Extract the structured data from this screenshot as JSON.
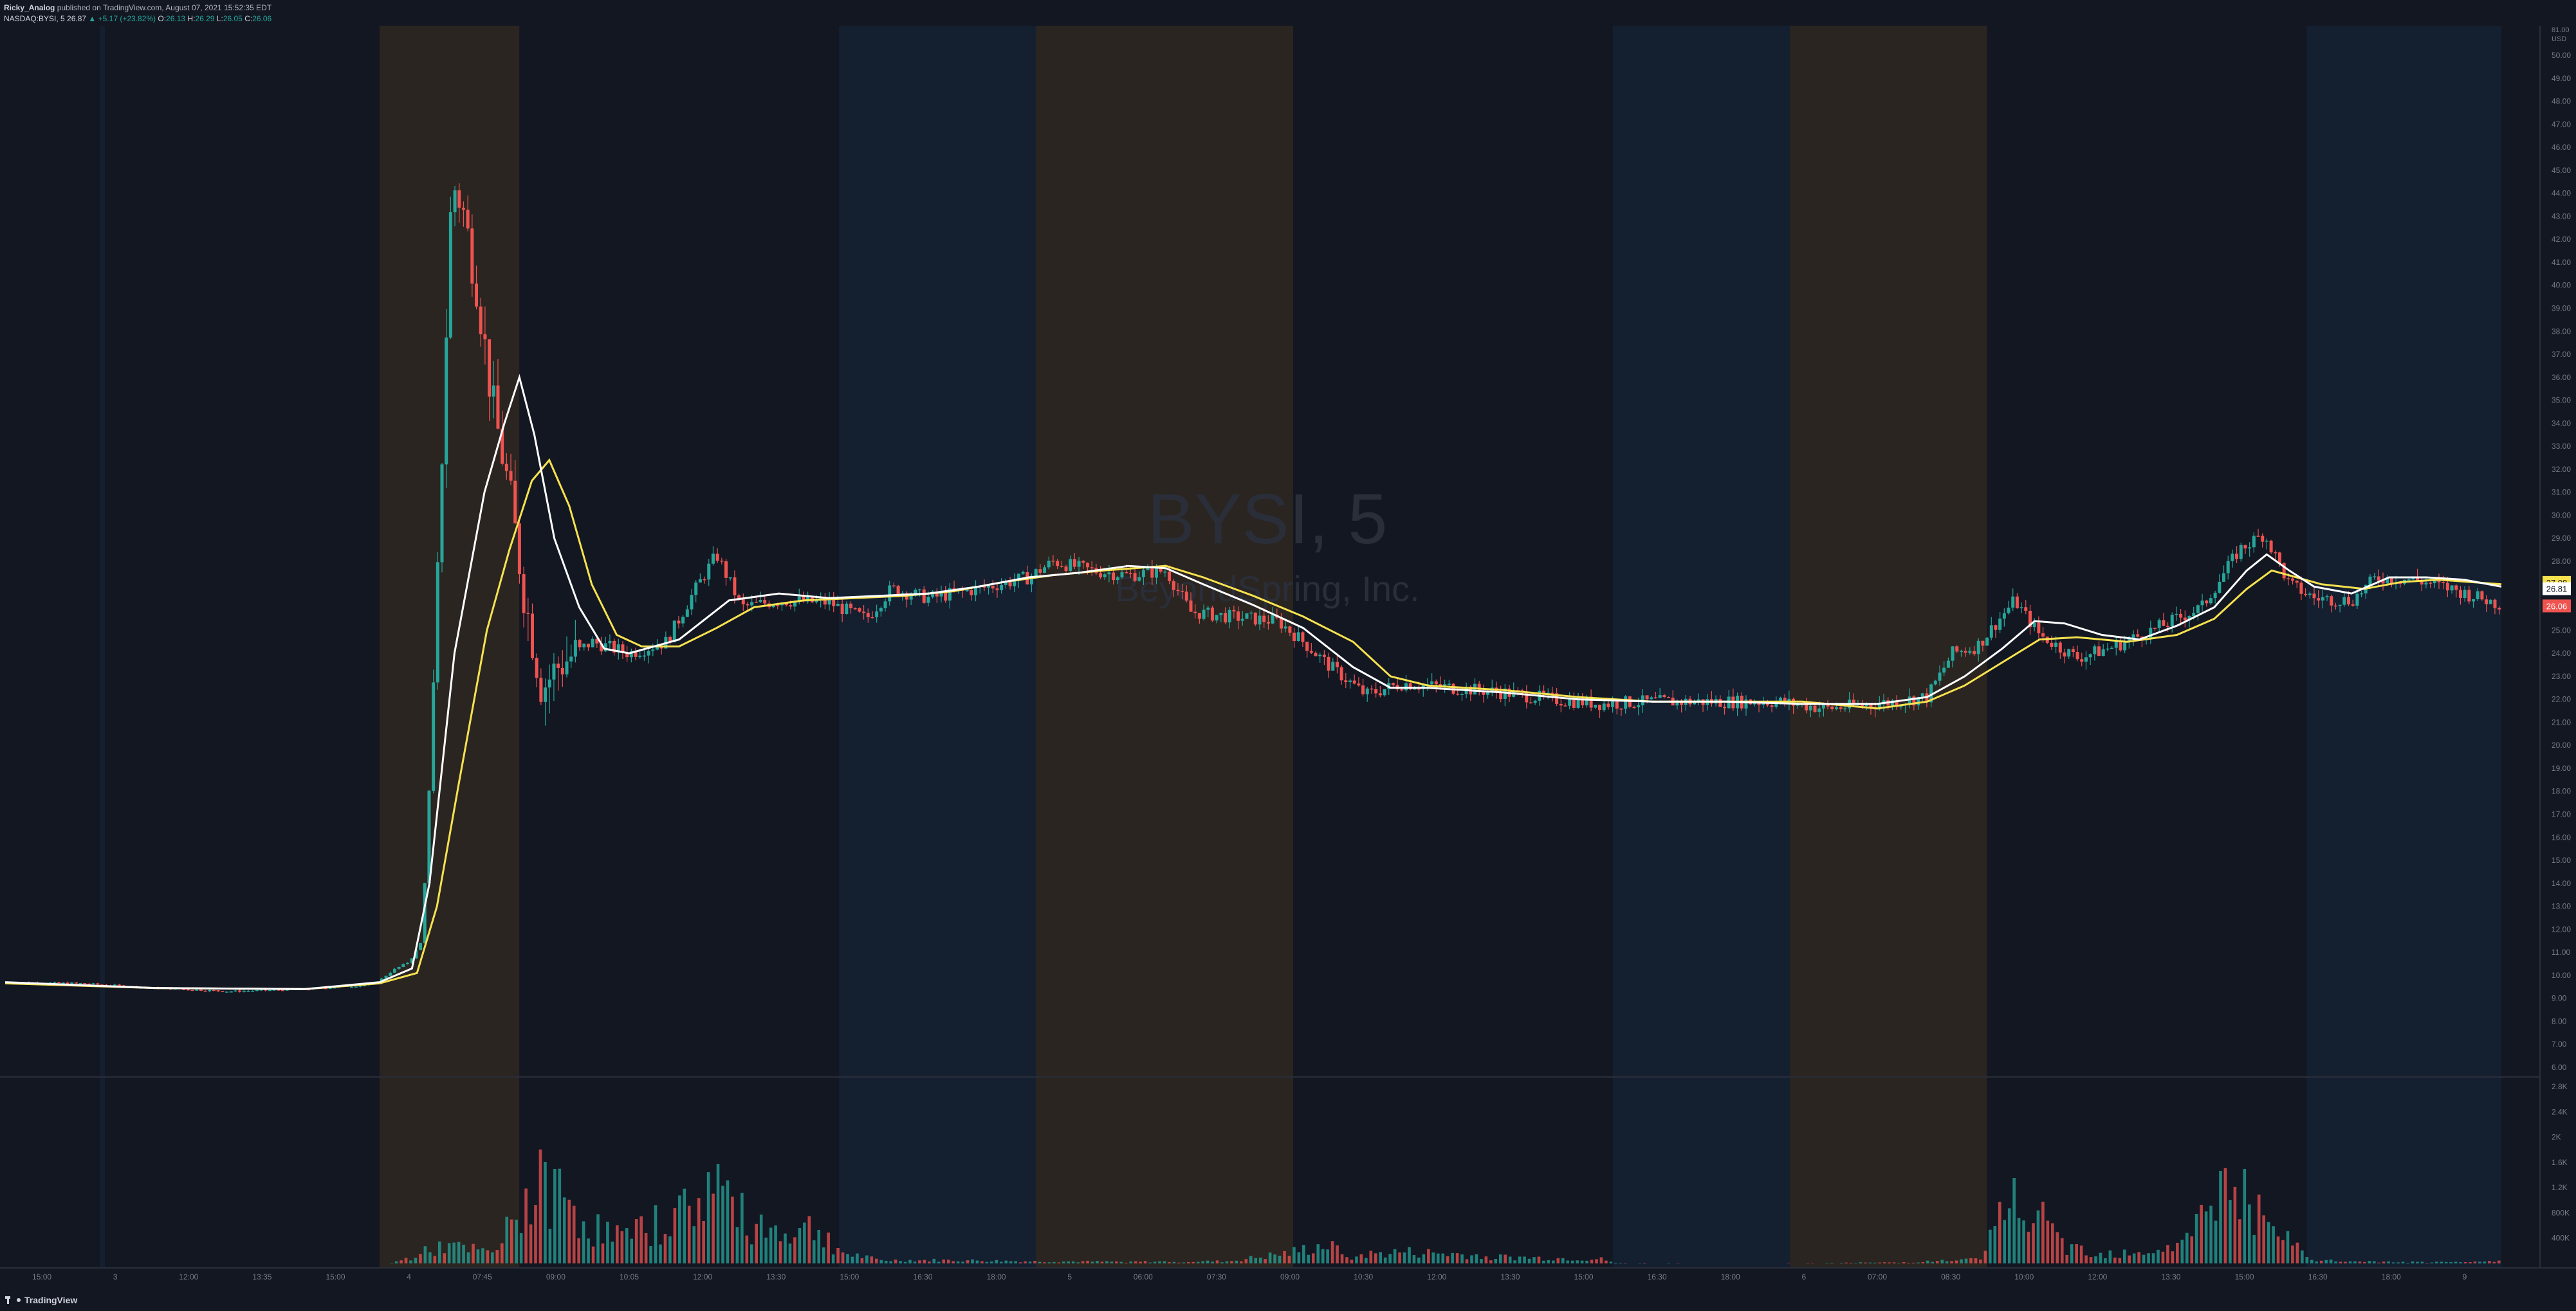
{
  "header": {
    "author": "Ricky_Analog",
    "published": "published on TradingView.com, August 07, 2021 15:52:35 EDT",
    "symbol_line": "NASDAQ:BYSI, 5",
    "last": "26.87",
    "change": "▲ +5.17 (+23.82%)",
    "o_label": "O:",
    "o_value": "26.13",
    "h_label": "H:",
    "h_value": "26.29",
    "l_label": "L:",
    "l_value": "26.05",
    "c_label": "C:",
    "c_value": "26.06"
  },
  "watermark": {
    "symbol": "BYSI, 5",
    "company": "BeyondSpring, Inc."
  },
  "footer": {
    "brand": "TradingView"
  },
  "colors": {
    "background": "#131722",
    "up": "#26a69a",
    "down": "#ef5350",
    "ma_fast": "#ffffff",
    "ma_slow": "#f7e24f",
    "premarket_band": "#2a2521",
    "afterhours_band": "#141f30",
    "overnight_band": "#131722"
  },
  "badges": {
    "ma1": "27.08",
    "ma2": "26.81",
    "last": "26.06",
    "currency_a": "81.00",
    "currency_b": "USD"
  },
  "chart_data": {
    "type": "line",
    "title": "BYSI, 5",
    "subtitle": "BeyondSpring, Inc.",
    "x_ticks": [
      "15:00",
      "3",
      "12:00",
      "13:35",
      "15:00",
      "4",
      "07:45",
      "09:00",
      "10:05",
      "12:00",
      "13:30",
      "15:00",
      "16:30",
      "18:00",
      "5",
      "06:00",
      "07:30",
      "09:00",
      "10:30",
      "12:00",
      "13:30",
      "15:00",
      "16:30",
      "18:00",
      "6",
      "07:00",
      "08:30",
      "10:00",
      "12:00",
      "13:30",
      "15:00",
      "16:30",
      "18:00",
      "9"
    ],
    "y_ticks": [
      6,
      7,
      8,
      9,
      10,
      11,
      12,
      13,
      14,
      15,
      16,
      17,
      18,
      19,
      20,
      21,
      22,
      23,
      24,
      25,
      26,
      27,
      28,
      29,
      30,
      31,
      32,
      33,
      34,
      35,
      36,
      37,
      38,
      39,
      40,
      41,
      42,
      43,
      44,
      45,
      46,
      47,
      48,
      49,
      50
    ],
    "ylim": [
      6,
      50
    ],
    "volume_ticks": [
      "2.8K",
      "2.4K",
      "2K",
      "1.6K",
      "1.2K",
      "800K",
      "400K"
    ],
    "volume_max": 2800,
    "x_range": [
      0,
      100
    ],
    "sessions": [
      {
        "type": "overnight",
        "x": [
          0,
          3.8
        ]
      },
      {
        "type": "afterhours",
        "x": [
          3.8,
          4.0
        ]
      },
      {
        "type": "overnight",
        "x": [
          4.0,
          15.0
        ]
      },
      {
        "type": "premarket",
        "x": [
          15.0,
          20.6
        ]
      },
      {
        "type": "regular",
        "x": [
          20.6,
          33.4
        ]
      },
      {
        "type": "afterhours",
        "x": [
          33.4,
          41.3
        ]
      },
      {
        "type": "premarket",
        "x": [
          41.3,
          51.6
        ]
      },
      {
        "type": "regular",
        "x": [
          51.6,
          64.4
        ]
      },
      {
        "type": "afterhours",
        "x": [
          64.4,
          71.5
        ]
      },
      {
        "type": "premarket",
        "x": [
          71.5,
          79.4
        ]
      },
      {
        "type": "regular",
        "x": [
          79.4,
          92.2
        ]
      },
      {
        "type": "afterhours",
        "x": [
          92.2,
          100
        ]
      }
    ],
    "price_path": [
      [
        0,
        9.7
      ],
      [
        3,
        9.65
      ],
      [
        6,
        9.45
      ],
      [
        9,
        9.3
      ],
      [
        12,
        9.4
      ],
      [
        14.8,
        9.6
      ],
      [
        15.5,
        10.2
      ],
      [
        16.2,
        10.6
      ],
      [
        16.7,
        11.5
      ],
      [
        17.2,
        23
      ],
      [
        17.6,
        36
      ],
      [
        17.9,
        44.5
      ],
      [
        18.3,
        43.5
      ],
      [
        18.9,
        40
      ],
      [
        19.5,
        35
      ],
      [
        20.2,
        31
      ],
      [
        20.8,
        26.5
      ],
      [
        21.5,
        22.5
      ],
      [
        22.2,
        23.5
      ],
      [
        23.5,
        24.5
      ],
      [
        25,
        24
      ],
      [
        26.5,
        24.5
      ],
      [
        27.5,
        26.5
      ],
      [
        28.5,
        28.3
      ],
      [
        29.5,
        26
      ],
      [
        31,
        26.3
      ],
      [
        33,
        26.2
      ],
      [
        34.5,
        25.5
      ],
      [
        35.5,
        26.8
      ],
      [
        37,
        26.4
      ],
      [
        39,
        26.8
      ],
      [
        41,
        27.3
      ],
      [
        42,
        28
      ],
      [
        43.5,
        27.6
      ],
      [
        45,
        27.4
      ],
      [
        46.5,
        27.6
      ],
      [
        47.5,
        25.8
      ],
      [
        49,
        25.6
      ],
      [
        51,
        25.4
      ],
      [
        52,
        24.5
      ],
      [
        53,
        23.5
      ],
      [
        54.5,
        22.2
      ],
      [
        56,
        22.7
      ],
      [
        58,
        22.5
      ],
      [
        60,
        22.3
      ],
      [
        62,
        22.0
      ],
      [
        64,
        21.8
      ],
      [
        66,
        21.9
      ],
      [
        68,
        21.9
      ],
      [
        71,
        21.9
      ],
      [
        73,
        21.6
      ],
      [
        75,
        21.8
      ],
      [
        77,
        22.1
      ],
      [
        78,
        24.0
      ],
      [
        79,
        24.3
      ],
      [
        80.5,
        26.3
      ],
      [
        81.5,
        24.8
      ],
      [
        83,
        23.8
      ],
      [
        84.5,
        24.3
      ],
      [
        86,
        25.0
      ],
      [
        88,
        26.0
      ],
      [
        89.5,
        28.5
      ],
      [
        90.5,
        29.2
      ],
      [
        91.5,
        27.0
      ],
      [
        92.5,
        26.4
      ],
      [
        94,
        26.3
      ],
      [
        95,
        27.3
      ],
      [
        96.5,
        27.2
      ],
      [
        98,
        26.8
      ],
      [
        100,
        26.1
      ]
    ],
    "ma_fast": [
      [
        0,
        9.7
      ],
      [
        6,
        9.45
      ],
      [
        12,
        9.4
      ],
      [
        15,
        9.7
      ],
      [
        16.3,
        10.3
      ],
      [
        17,
        14
      ],
      [
        18,
        24
      ],
      [
        19.2,
        31
      ],
      [
        20.0,
        34
      ],
      [
        20.6,
        36
      ],
      [
        21.2,
        33.5
      ],
      [
        22,
        29
      ],
      [
        23,
        26
      ],
      [
        24,
        24.2
      ],
      [
        25,
        24.0
      ],
      [
        27,
        24.6
      ],
      [
        29,
        26.3
      ],
      [
        31,
        26.6
      ],
      [
        33,
        26.4
      ],
      [
        35,
        26.5
      ],
      [
        37,
        26.6
      ],
      [
        39,
        26.9
      ],
      [
        41,
        27.3
      ],
      [
        43,
        27.5
      ],
      [
        45,
        27.8
      ],
      [
        46.5,
        27.7
      ],
      [
        48,
        27.0
      ],
      [
        50,
        26.1
      ],
      [
        52,
        25.1
      ],
      [
        54,
        23.4
      ],
      [
        55.5,
        22.5
      ],
      [
        57,
        22.5
      ],
      [
        60,
        22.3
      ],
      [
        63,
        22.0
      ],
      [
        66,
        21.9
      ],
      [
        69,
        21.9
      ],
      [
        72,
        21.8
      ],
      [
        75,
        21.8
      ],
      [
        77,
        22.1
      ],
      [
        78.5,
        23.0
      ],
      [
        80,
        24.2
      ],
      [
        81.3,
        25.4
      ],
      [
        82.5,
        25.3
      ],
      [
        84,
        24.8
      ],
      [
        85.5,
        24.6
      ],
      [
        87,
        25.2
      ],
      [
        88.5,
        26.0
      ],
      [
        89.8,
        27.6
      ],
      [
        90.6,
        28.3
      ],
      [
        91.5,
        27.6
      ],
      [
        92.5,
        26.9
      ],
      [
        94,
        26.6
      ],
      [
        95.5,
        27.3
      ],
      [
        97,
        27.3
      ],
      [
        98.5,
        27.2
      ],
      [
        100,
        26.9
      ]
    ],
    "ma_slow": [
      [
        0,
        9.65
      ],
      [
        6,
        9.45
      ],
      [
        12,
        9.4
      ],
      [
        15,
        9.65
      ],
      [
        16.5,
        10.1
      ],
      [
        17.3,
        13
      ],
      [
        18.2,
        18.5
      ],
      [
        19.3,
        25
      ],
      [
        20.2,
        28.5
      ],
      [
        21.1,
        31.5
      ],
      [
        21.8,
        32.4
      ],
      [
        22.6,
        30.4
      ],
      [
        23.5,
        27
      ],
      [
        24.5,
        24.8
      ],
      [
        25.5,
        24.3
      ],
      [
        27,
        24.3
      ],
      [
        28.5,
        25.1
      ],
      [
        30,
        26.0
      ],
      [
        32,
        26.3
      ],
      [
        34,
        26.4
      ],
      [
        36,
        26.5
      ],
      [
        38,
        26.7
      ],
      [
        40,
        27.1
      ],
      [
        42,
        27.4
      ],
      [
        44,
        27.6
      ],
      [
        46.5,
        27.8
      ],
      [
        48,
        27.3
      ],
      [
        50,
        26.5
      ],
      [
        52,
        25.6
      ],
      [
        54,
        24.5
      ],
      [
        55.5,
        23.0
      ],
      [
        57,
        22.6
      ],
      [
        60,
        22.4
      ],
      [
        63,
        22.1
      ],
      [
        66,
        21.9
      ],
      [
        69,
        21.9
      ],
      [
        72,
        21.9
      ],
      [
        75,
        21.6
      ],
      [
        77,
        21.9
      ],
      [
        78.5,
        22.6
      ],
      [
        80,
        23.6
      ],
      [
        81.5,
        24.6
      ],
      [
        83,
        24.7
      ],
      [
        85,
        24.5
      ],
      [
        87,
        24.8
      ],
      [
        88.5,
        25.5
      ],
      [
        89.8,
        26.8
      ],
      [
        90.8,
        27.6
      ],
      [
        91.8,
        27.3
      ],
      [
        92.8,
        27.0
      ],
      [
        94.5,
        26.8
      ],
      [
        96,
        27.1
      ],
      [
        97.5,
        27.2
      ],
      [
        100,
        27.0
      ]
    ],
    "volume_profile": [
      [
        0,
        0
      ],
      [
        14.9,
        0
      ],
      [
        15.5,
        10
      ],
      [
        16.3,
        120
      ],
      [
        17.5,
        350
      ],
      [
        18.4,
        280
      ],
      [
        19.6,
        200
      ],
      [
        20.8,
        1200
      ],
      [
        21.5,
        1500
      ],
      [
        22.5,
        1300
      ],
      [
        23.5,
        700
      ],
      [
        25,
        500
      ],
      [
        26.5,
        900
      ],
      [
        27.5,
        1100
      ],
      [
        28.4,
        1700
      ],
      [
        29.5,
        900
      ],
      [
        31,
        650
      ],
      [
        32.5,
        700
      ],
      [
        33.6,
        200
      ],
      [
        35,
        60
      ],
      [
        38,
        60
      ],
      [
        41,
        40
      ],
      [
        45,
        30
      ],
      [
        49,
        40
      ],
      [
        51.5,
        200
      ],
      [
        52.8,
        350
      ],
      [
        54,
        150
      ],
      [
        56,
        220
      ],
      [
        58,
        180
      ],
      [
        60,
        120
      ],
      [
        62,
        100
      ],
      [
        64,
        80
      ],
      [
        64.5,
        10
      ],
      [
        70,
        0
      ],
      [
        76,
        20
      ],
      [
        79.2,
        80
      ],
      [
        80.2,
        1300
      ],
      [
        81.3,
        950
      ],
      [
        82.5,
        350
      ],
      [
        84,
        200
      ],
      [
        86,
        260
      ],
      [
        87.5,
        450
      ],
      [
        88.6,
        1600
      ],
      [
        89.8,
        1300
      ],
      [
        90.8,
        550
      ],
      [
        91.8,
        350
      ],
      [
        92.3,
        60
      ],
      [
        95,
        30
      ],
      [
        98,
        20
      ],
      [
        100,
        40
      ]
    ]
  }
}
